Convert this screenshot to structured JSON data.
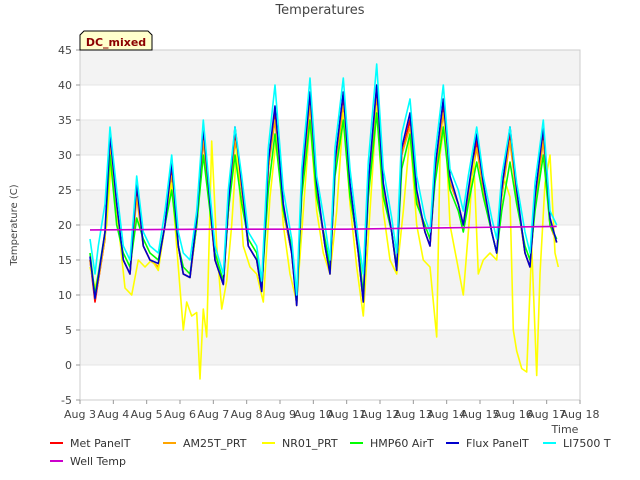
{
  "chart_data": {
    "type": "line",
    "title": "Temperatures",
    "xlabel": "Time",
    "ylabel": "Temperature (C)",
    "badge": "DC_mixed",
    "x_ticks": [
      "Aug 3",
      "Aug 4",
      "Aug 5",
      "Aug 6",
      "Aug 7",
      "Aug 8",
      "Aug 9",
      "Aug 10",
      "Aug 11",
      "Aug 12",
      "Aug 13",
      "Aug 14",
      "Aug 15",
      "Aug 16",
      "Aug 17",
      "Aug 18"
    ],
    "y_ticks": [
      -5,
      0,
      5,
      10,
      15,
      20,
      25,
      30,
      35,
      40,
      45
    ],
    "xlim": [
      3,
      18
    ],
    "ylim": [
      -5,
      45
    ],
    "grid": "horizontal bands",
    "legend_position": "bottom",
    "series": [
      {
        "name": "Met PanelT",
        "color": "#ff0000",
        "x": [
          3.3,
          3.45,
          3.55,
          3.75,
          3.9,
          4.1,
          4.3,
          4.5,
          4.7,
          4.9,
          5.1,
          5.35,
          5.55,
          5.75,
          5.95,
          6.1,
          6.3,
          6.5,
          6.7,
          6.85,
          7.05,
          7.3,
          7.45,
          7.65,
          7.85,
          8.05,
          8.3,
          8.45,
          8.65,
          8.85,
          9.1,
          9.35,
          9.5,
          9.65,
          9.9,
          10.1,
          10.35,
          10.5,
          10.65,
          10.9,
          11.1,
          11.35,
          11.5,
          11.65,
          11.9,
          12.1,
          12.35,
          12.5,
          12.65,
          12.9,
          13.1,
          13.35,
          13.5,
          13.65,
          13.9,
          14.1,
          14.35,
          14.5,
          14.65,
          14.9,
          15.1,
          15.35,
          15.5,
          15.65,
          15.9,
          16.1,
          16.35,
          16.5,
          16.65,
          16.9,
          17.1,
          17.3
        ],
        "y": [
          15,
          9,
          12,
          18,
          32,
          22,
          15,
          13,
          25,
          17,
          15,
          14,
          20,
          28,
          17,
          13,
          12.5,
          20,
          33,
          25,
          15,
          11.5,
          22,
          33,
          25,
          17,
          15,
          10.5,
          28,
          36,
          22,
          16,
          8.5,
          25,
          38,
          25,
          17,
          13,
          28,
          38,
          25,
          16,
          9,
          25,
          39,
          25,
          19,
          13.5,
          30,
          35,
          24,
          19,
          17,
          27,
          37,
          26,
          23,
          20,
          24,
          32,
          25,
          19,
          16,
          24,
          33,
          24,
          16,
          14,
          23,
          33,
          20,
          17.5
        ]
      },
      {
        "name": "AM25T_PRT",
        "color": "#ffa500",
        "x": [
          3.3,
          3.45,
          3.55,
          3.75,
          3.9,
          4.1,
          4.3,
          4.5,
          4.7,
          4.9,
          5.1,
          5.35,
          5.55,
          5.75,
          5.95,
          6.1,
          6.3,
          6.5,
          6.7,
          6.85,
          7.05,
          7.3,
          7.45,
          7.65,
          7.85,
          8.05,
          8.3,
          8.45,
          8.65,
          8.85,
          9.1,
          9.35,
          9.5,
          9.65,
          9.9,
          10.1,
          10.35,
          10.5,
          10.65,
          10.9,
          11.1,
          11.35,
          11.5,
          11.65,
          11.9,
          12.1,
          12.35,
          12.5,
          12.65,
          12.9,
          13.1,
          13.35,
          13.5,
          13.65,
          13.9,
          14.1,
          14.35,
          14.5,
          14.65,
          14.9,
          15.1,
          15.35,
          15.5,
          15.65,
          15.9,
          16.1,
          16.35,
          16.5,
          16.65,
          16.9,
          17.1,
          17.3
        ],
        "y": [
          15,
          9.5,
          12,
          18,
          31,
          22,
          15,
          13,
          24,
          17,
          15,
          14,
          20,
          27,
          17,
          13,
          12.5,
          20,
          32,
          25,
          15,
          11.5,
          22,
          32,
          25,
          17,
          15,
          10.5,
          28,
          35,
          22,
          16,
          8.5,
          25,
          37,
          25,
          17,
          13,
          28,
          37,
          25,
          16,
          9,
          25,
          38,
          25,
          19,
          13.5,
          30,
          34,
          24,
          19,
          17,
          27,
          36,
          26,
          23,
          20,
          24,
          31,
          25,
          19,
          16,
          24,
          32,
          24,
          16,
          14,
          23,
          32,
          20,
          17.5
        ]
      },
      {
        "name": "NR01_PRT",
        "color": "#ffff00",
        "x": [
          3.3,
          3.45,
          3.6,
          3.8,
          3.95,
          4.15,
          4.35,
          4.55,
          4.75,
          4.95,
          5.15,
          5.35,
          5.55,
          5.75,
          5.95,
          6.1,
          6.2,
          6.35,
          6.5,
          6.6,
          6.7,
          6.8,
          6.95,
          7.1,
          7.25,
          7.4,
          7.55,
          7.7,
          7.9,
          8.1,
          8.3,
          8.5,
          8.7,
          8.9,
          9.1,
          9.3,
          9.5,
          9.7,
          9.9,
          10.1,
          10.3,
          10.5,
          10.7,
          10.9,
          11.1,
          11.3,
          11.5,
          11.7,
          11.9,
          12.1,
          12.3,
          12.5,
          12.7,
          12.9,
          13.1,
          13.3,
          13.5,
          13.7,
          13.8,
          13.95,
          14.1,
          14.3,
          14.5,
          14.7,
          14.8,
          14.95,
          15.1,
          15.3,
          15.5,
          15.7,
          15.9,
          16.0,
          16.1,
          16.25,
          16.4,
          16.55,
          16.7,
          16.8,
          16.95,
          17.1,
          17.25,
          17.35
        ],
        "y": [
          14,
          11,
          14,
          20,
          30,
          20,
          11,
          10,
          15,
          14,
          15,
          13.5,
          20,
          26,
          14,
          5,
          9,
          7,
          7.5,
          -2,
          8,
          4,
          32,
          17,
          8,
          12,
          20,
          31,
          17,
          14,
          13,
          9,
          24,
          33,
          20,
          13,
          9,
          22,
          35,
          22,
          16,
          13,
          22,
          36,
          23,
          14,
          7,
          22,
          37,
          22,
          15,
          13,
          22,
          33,
          20,
          15,
          14,
          4,
          30,
          35,
          20,
          15,
          10,
          22,
          31,
          13,
          15,
          16,
          15,
          27,
          24,
          5,
          2,
          -0.5,
          -1,
          17,
          -1.5,
          13,
          26,
          30,
          16,
          14
        ]
      },
      {
        "name": "HMP60 AirT",
        "color": "#00ff00",
        "x": [
          3.3,
          3.45,
          3.55,
          3.75,
          3.9,
          4.1,
          4.3,
          4.5,
          4.7,
          4.9,
          5.1,
          5.35,
          5.55,
          5.75,
          5.95,
          6.1,
          6.3,
          6.5,
          6.7,
          6.85,
          7.05,
          7.3,
          7.45,
          7.65,
          7.85,
          8.05,
          8.3,
          8.45,
          8.65,
          8.85,
          9.1,
          9.35,
          9.5,
          9.65,
          9.9,
          10.1,
          10.35,
          10.5,
          10.65,
          10.9,
          11.1,
          11.35,
          11.5,
          11.65,
          11.9,
          12.1,
          12.35,
          12.5,
          12.65,
          12.9,
          13.1,
          13.35,
          13.5,
          13.65,
          13.9,
          14.1,
          14.35,
          14.5,
          14.65,
          14.9,
          15.1,
          15.35,
          15.5,
          15.65,
          15.9,
          16.1,
          16.35,
          16.5,
          16.65,
          16.9,
          17.1,
          17.3
        ],
        "y": [
          16,
          10,
          13,
          19,
          30,
          20,
          16,
          14,
          21,
          18,
          16,
          15,
          20,
          25,
          17,
          14,
          13,
          20,
          30,
          24,
          16,
          12,
          22,
          30,
          23,
          18,
          16,
          11,
          25,
          33,
          22,
          17,
          9,
          24,
          35,
          24,
          18,
          14,
          27,
          35,
          24,
          17,
          10,
          24,
          36,
          24,
          19,
          14,
          28,
          33,
          23,
          20,
          18,
          26,
          34,
          25,
          22,
          19,
          23,
          29,
          24,
          19,
          16,
          22,
          29,
          23,
          17,
          15,
          22,
          30,
          20,
          18
        ]
      },
      {
        "name": "Flux PanelT",
        "color": "#0000cd",
        "x": [
          3.3,
          3.45,
          3.55,
          3.75,
          3.9,
          4.1,
          4.3,
          4.5,
          4.7,
          4.9,
          5.1,
          5.35,
          5.55,
          5.75,
          5.95,
          6.1,
          6.3,
          6.5,
          6.7,
          6.85,
          7.05,
          7.3,
          7.45,
          7.65,
          7.85,
          8.05,
          8.3,
          8.45,
          8.65,
          8.85,
          9.1,
          9.35,
          9.5,
          9.65,
          9.9,
          10.1,
          10.35,
          10.5,
          10.65,
          10.9,
          11.1,
          11.35,
          11.5,
          11.65,
          11.9,
          12.1,
          12.35,
          12.5,
          12.65,
          12.9,
          13.1,
          13.35,
          13.5,
          13.65,
          13.9,
          14.1,
          14.35,
          14.5,
          14.65,
          14.9,
          15.1,
          15.35,
          15.5,
          15.65,
          15.9,
          16.1,
          16.35,
          16.5,
          16.65,
          16.9,
          17.1,
          17.3
        ],
        "y": [
          15.5,
          9.5,
          12.5,
          19,
          33,
          23,
          15,
          13,
          26,
          17,
          15,
          14.5,
          20,
          29,
          17,
          13,
          12.5,
          21,
          34,
          26,
          15,
          11.5,
          23,
          34,
          26,
          17,
          15,
          10.5,
          29,
          37,
          23,
          16,
          8.5,
          26,
          39,
          26,
          17,
          13,
          29,
          39,
          26,
          16,
          9,
          26,
          40,
          26,
          19,
          13.5,
          31,
          36,
          25,
          19,
          17,
          28,
          38,
          27,
          23,
          20,
          25,
          33,
          26,
          19,
          16,
          25,
          34,
          25,
          16,
          14,
          24,
          34,
          21,
          17.5
        ]
      },
      {
        "name": "LI7500 T",
        "color": "#00ffff",
        "x": [
          3.3,
          3.45,
          3.55,
          3.75,
          3.9,
          4.1,
          4.3,
          4.5,
          4.7,
          4.9,
          5.1,
          5.35,
          5.55,
          5.75,
          5.95,
          6.1,
          6.3,
          6.5,
          6.7,
          6.85,
          7.05,
          7.3,
          7.45,
          7.65,
          7.85,
          8.05,
          8.3,
          8.45,
          8.65,
          8.85,
          9.1,
          9.35,
          9.5,
          9.65,
          9.9,
          10.1,
          10.35,
          10.5,
          10.65,
          10.9,
          11.1,
          11.35,
          11.5,
          11.65,
          11.9,
          12.1,
          12.35,
          12.5,
          12.65,
          12.9,
          13.1,
          13.35,
          13.5,
          13.65,
          13.9,
          14.1,
          14.35,
          14.5,
          14.65,
          14.9,
          15.1,
          15.35,
          15.5,
          15.65,
          15.9,
          16.1,
          16.35,
          16.5,
          16.65,
          16.9,
          17.1,
          17.3
        ],
        "y": [
          18,
          13,
          17,
          23,
          34,
          25,
          17,
          15,
          27,
          19,
          17,
          16,
          22,
          30,
          19,
          16,
          15,
          22,
          35,
          27,
          17,
          13,
          25,
          34,
          27,
          19,
          17,
          12,
          31,
          40,
          25,
          18,
          10,
          28,
          41,
          27,
          20,
          15,
          31,
          41,
          28,
          18,
          13,
          29,
          43,
          28,
          21,
          16,
          33,
          38,
          27,
          21,
          19,
          30,
          40,
          28,
          25,
          22,
          27,
          34,
          27,
          21,
          18,
          27,
          34,
          26,
          19,
          16,
          26,
          35,
          22,
          20
        ]
      },
      {
        "name": "Well Temp",
        "color": "#cc00cc",
        "x": [
          3.3,
          7,
          11,
          14,
          17.3
        ],
        "y": [
          19.3,
          19.4,
          19.4,
          19.6,
          19.8
        ]
      }
    ]
  }
}
